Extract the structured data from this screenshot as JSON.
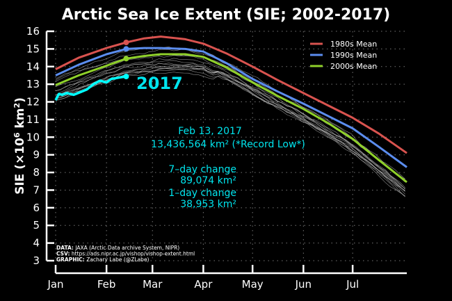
{
  "chart_data": {
    "type": "line",
    "title": "Arctic Sea Ice Extent (SIE; 2002-2017)",
    "xlabel": "",
    "ylabel": "SIE (×10⁶ km²)",
    "ylabel_parts": {
      "prefix": "SIE (×10",
      "exp": "6",
      "mid": " km",
      "exp2": "2",
      "suffix": ")"
    },
    "ylim": [
      3,
      16
    ],
    "yticks": [
      3,
      4,
      5,
      6,
      7,
      8,
      9,
      10,
      11,
      12,
      13,
      14,
      15,
      16
    ],
    "xlim_day_of_year": [
      1,
      215
    ],
    "xticks": [
      {
        "label": "Jan",
        "day": 1
      },
      {
        "label": "Feb",
        "day": 32
      },
      {
        "label": "Mar",
        "day": 60
      },
      {
        "label": "Apr",
        "day": 91
      },
      {
        "label": "May",
        "day": 121
      },
      {
        "label": "Jun",
        "day": 152
      },
      {
        "label": "Jul",
        "day": 182
      }
    ],
    "grid": true,
    "legend_position": "top-right",
    "series": [
      {
        "name": "1980s Mean",
        "color": "#d9534f",
        "x": [
          1,
          15,
          32,
          44,
          55,
          65,
          80,
          91,
          105,
          121,
          136,
          152,
          167,
          182,
          198,
          215
        ],
        "y": [
          13.85,
          14.5,
          15.05,
          15.37,
          15.6,
          15.7,
          15.55,
          15.3,
          14.75,
          14.0,
          13.25,
          12.5,
          11.8,
          11.1,
          10.2,
          9.1
        ]
      },
      {
        "name": "1990s Mean",
        "color": "#5b8def",
        "x": [
          1,
          15,
          32,
          44,
          55,
          65,
          80,
          91,
          105,
          121,
          136,
          152,
          167,
          182,
          198,
          215
        ],
        "y": [
          13.5,
          14.1,
          14.7,
          15.0,
          15.05,
          15.05,
          15.0,
          14.85,
          14.2,
          13.3,
          12.6,
          11.9,
          11.2,
          10.5,
          9.45,
          8.3
        ]
      },
      {
        "name": "2000s Mean",
        "color": "#8fd12a",
        "x": [
          1,
          15,
          32,
          44,
          55,
          65,
          80,
          91,
          105,
          121,
          136,
          152,
          167,
          182,
          198,
          215
        ],
        "y": [
          12.95,
          13.5,
          14.05,
          14.45,
          14.6,
          14.7,
          14.7,
          14.55,
          13.95,
          13.1,
          12.35,
          11.6,
          10.8,
          9.9,
          8.7,
          7.45
        ]
      },
      {
        "name": "2017",
        "color": "#00ffff",
        "x": [
          1,
          3,
          5,
          8,
          12,
          16,
          20,
          24,
          28,
          32,
          35,
          38,
          41,
          44
        ],
        "y": [
          12.1,
          12.45,
          12.4,
          12.5,
          12.4,
          12.55,
          12.7,
          13.0,
          13.2,
          13.1,
          13.3,
          13.35,
          13.4,
          13.44
        ]
      }
    ],
    "highlight_day": 44,
    "highlight_points": [
      {
        "series": "1980s Mean",
        "value": 15.37
      },
      {
        "series": "1990s Mean",
        "value": 15.0
      },
      {
        "series": "2000s Mean",
        "value": 14.45
      },
      {
        "series": "2017",
        "value": 13.44
      }
    ],
    "individual_years": "2002-2016 (thin gray lines)",
    "year_label": "2017",
    "annotations": {
      "date": "Feb 13, 2017",
      "extent": "13,436,564 km² (*Record Low*)",
      "change7_label": "7–day change",
      "change7_value": "89,074 km²",
      "change1_label": "1–day change",
      "change1_value": "38,953 km²"
    },
    "credits": [
      {
        "key": "DATA:",
        "value": " JAXA (Arctic Data archive System, NIPR)"
      },
      {
        "key": "CSV:",
        "value": " https://ads.nipr.ac.jp/vishop/vishop-extent.html"
      },
      {
        "key": "GRAPHIC:",
        "value": " Zachary Labe (@ZLabe)"
      }
    ]
  }
}
